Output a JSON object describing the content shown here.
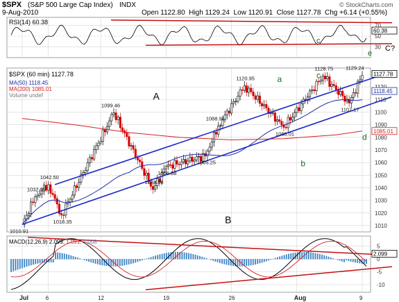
{
  "header": {
    "symbol": "$SPX",
    "name": "(S&P 500 Large Cap Index)",
    "exchange": "INDX",
    "date": "9-Aug-2010",
    "open_label": "Open",
    "open": "1122.80",
    "high_label": "High",
    "high": "1129.24",
    "low_label": "Low",
    "low": "1120.91",
    "close_label": "Close",
    "close": "1127.78",
    "chg_label": "Chg",
    "chg": "+6.14 (+0.55%)",
    "watermark": "© StockCharts.com"
  },
  "rsi": {
    "label": "RSI(14) 60.38",
    "ticks": [
      "70",
      "50",
      "30"
    ],
    "value_tag": "60.38",
    "annotations": [
      "c",
      "e",
      "C?"
    ]
  },
  "price": {
    "label": "$SPX (60 min) 1127.78",
    "legend": [
      {
        "text": "MA(50) 1118.45",
        "color": "#1f2e9e"
      },
      {
        "text": "MA(200) 1085.01",
        "color": "#d62020"
      },
      {
        "text": "Volume undef",
        "color": "#777777"
      }
    ],
    "y_ticks": [
      "1120",
      "1110",
      "1100",
      "1090",
      "1080",
      "1070",
      "1060",
      "1050",
      "1040",
      "1030",
      "1020",
      "1010"
    ],
    "value_tags": [
      "1127.78",
      "1118.45",
      "1085.01"
    ],
    "price_labels": [
      "1010.91",
      "1032.95",
      "1042.50",
      "1018.35",
      "1099.46",
      "1038.66",
      "1056.88",
      "1065.25",
      "1088.96",
      "1120.95",
      "1088.01",
      "1128.75",
      "1107.17",
      "1129.24"
    ],
    "wave_labels": [
      "A",
      "B",
      "a",
      "b",
      "c",
      "d"
    ]
  },
  "macd": {
    "label_prefix": "MACD(12,26,9)",
    "v1": "2.099",
    "v2": "1.091",
    "v3": "1.008",
    "ticks": [
      "5",
      "0",
      "-5",
      "-10"
    ],
    "value_tag": "2.099"
  },
  "x_axis": {
    "labels": [
      "Jul",
      "6",
      "12",
      "19",
      "26",
      "Aug",
      "9"
    ]
  },
  "colors": {
    "candle_up": "#000000",
    "candle_down": "#d40000",
    "ma50": "#1f2e9e",
    "ma200": "#d62020",
    "channel": "#1a28c9",
    "trendline": "#c41010",
    "macd_line": "#000000",
    "signal_line": "#d62020",
    "histogram": "#3b82c4",
    "wave_green": "#1c6d1c",
    "grid": "#d4d4d4"
  },
  "chart_data": {
    "type": "candlestick",
    "title": "$SPX (60 min)",
    "ylim": [
      1005,
      1135
    ],
    "x_range": [
      "2010-07-01",
      "2010-08-09"
    ],
    "pivots": [
      {
        "date": "2010-07-01",
        "value": 1010.91
      },
      {
        "date": "2010-07-02",
        "value": 1032.95
      },
      {
        "date": "2010-07-06",
        "value": 1042.5
      },
      {
        "date": "2010-07-07",
        "value": 1018.35
      },
      {
        "date": "2010-07-13",
        "value": 1099.46
      },
      {
        "date": "2010-07-16",
        "value": 1038.66
      },
      {
        "date": "2010-07-19",
        "value": 1056.88
      },
      {
        "date": "2010-07-22",
        "value": 1065.25
      },
      {
        "date": "2010-07-23",
        "value": 1088.96
      },
      {
        "date": "2010-07-27",
        "value": 1120.95
      },
      {
        "date": "2010-07-30",
        "value": 1088.01
      },
      {
        "date": "2010-08-04",
        "value": 1128.75
      },
      {
        "date": "2010-08-06",
        "value": 1107.17
      },
      {
        "date": "2010-08-09",
        "value": 1129.24
      }
    ],
    "ma50_last": 1118.45,
    "ma200_last": 1085.01,
    "rsi_last": 60.38,
    "macd_last": {
      "macd": 2.099,
      "signal": 1.091,
      "histogram": 1.008
    }
  }
}
